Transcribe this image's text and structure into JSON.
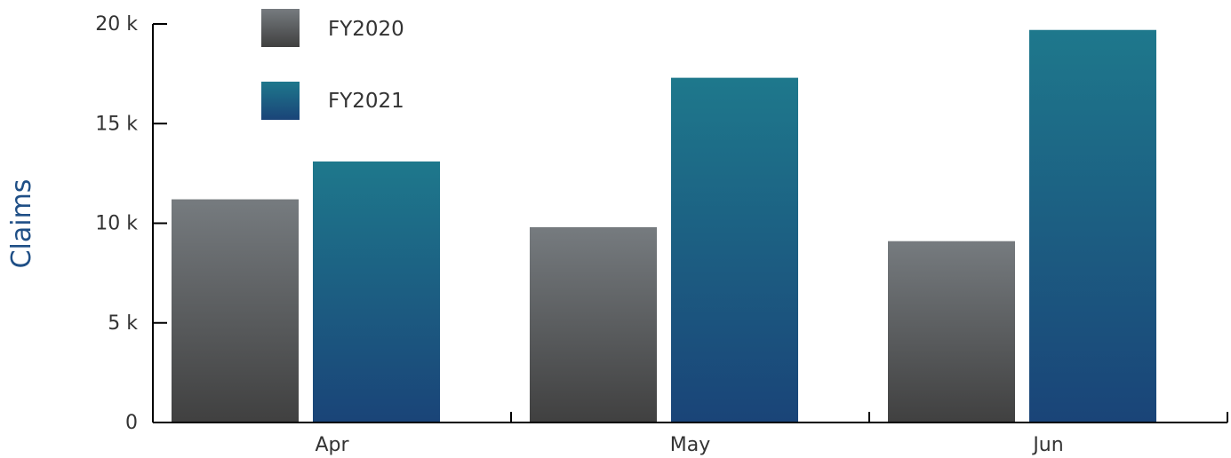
{
  "chart_data": {
    "type": "bar",
    "title": "",
    "xlabel": "",
    "ylabel": "Claims",
    "categories": [
      "Apr",
      "May",
      "Jun"
    ],
    "series": [
      {
        "name": "FY2020",
        "values": [
          11200,
          9800,
          9100
        ],
        "color_top": "#767b7f",
        "color_bottom": "#404040"
      },
      {
        "name": "FY2021",
        "values": [
          13100,
          17300,
          19700
        ],
        "color_top": "#1e788c",
        "color_bottom": "#1a4478"
      }
    ],
    "ylim": [
      0,
      20000
    ],
    "yticks": [
      0,
      5000,
      10000,
      15000,
      20000
    ],
    "ytick_labels": [
      "0",
      "5 k",
      "10 k",
      "15 k",
      "20 k"
    ],
    "grid": false,
    "legend_position": "top-left"
  }
}
